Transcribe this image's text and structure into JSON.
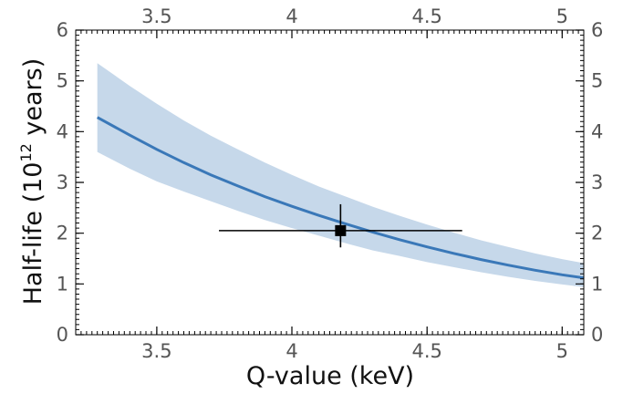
{
  "chart_data": {
    "type": "line",
    "xlabel": "Q-value (keV)",
    "ylabel": {
      "prefix": "Half-life (10",
      "exponent": "12",
      "suffix": " years)"
    },
    "xlim": [
      3.2,
      5.08
    ],
    "ylim": [
      0,
      6
    ],
    "x_ticks": [
      3.5,
      4,
      4.5,
      5
    ],
    "x_tick_labels": [
      "3.5",
      "4",
      "4.5",
      "5"
    ],
    "y_ticks": [
      0,
      1,
      2,
      3,
      4,
      5,
      6
    ],
    "y_tick_labels": [
      "0",
      "1",
      "2",
      "3",
      "4",
      "5",
      "6"
    ],
    "top_axis_mirrored": true,
    "right_axis_mirrored": true,
    "grid": false,
    "series": [
      {
        "kind": "central-curve",
        "color": "#3a78b8",
        "x": [
          3.28,
          3.4,
          3.5,
          3.6,
          3.7,
          3.8,
          3.9,
          4.0,
          4.1,
          4.2,
          4.3,
          4.4,
          4.5,
          4.6,
          4.7,
          4.8,
          4.9,
          5.0,
          5.08
        ],
        "y": [
          4.28,
          3.93,
          3.65,
          3.39,
          3.15,
          2.93,
          2.72,
          2.53,
          2.35,
          2.18,
          2.02,
          1.87,
          1.73,
          1.6,
          1.48,
          1.37,
          1.27,
          1.18,
          1.12
        ]
      },
      {
        "kind": "uncertainty-band",
        "color": "#c6d8ea",
        "x": [
          3.28,
          3.4,
          3.5,
          3.6,
          3.7,
          3.8,
          3.9,
          4.0,
          4.1,
          4.2,
          4.3,
          4.4,
          4.5,
          4.6,
          4.7,
          4.8,
          4.9,
          5.0,
          5.08
        ],
        "y_upper": [
          5.35,
          4.9,
          4.55,
          4.22,
          3.92,
          3.65,
          3.39,
          3.15,
          2.92,
          2.72,
          2.52,
          2.34,
          2.17,
          2.01,
          1.86,
          1.73,
          1.6,
          1.49,
          1.41
        ],
        "y_lower": [
          3.6,
          3.27,
          3.02,
          2.82,
          2.63,
          2.44,
          2.26,
          2.1,
          1.95,
          1.8,
          1.66,
          1.55,
          1.43,
          1.33,
          1.23,
          1.14,
          1.06,
          0.99,
          0.94
        ]
      }
    ],
    "measurement": {
      "marker": "square",
      "color": "#000000",
      "x": 4.18,
      "y": 2.05,
      "x_err": [
        3.73,
        4.63
      ],
      "y_err": [
        1.72,
        2.57
      ]
    }
  }
}
